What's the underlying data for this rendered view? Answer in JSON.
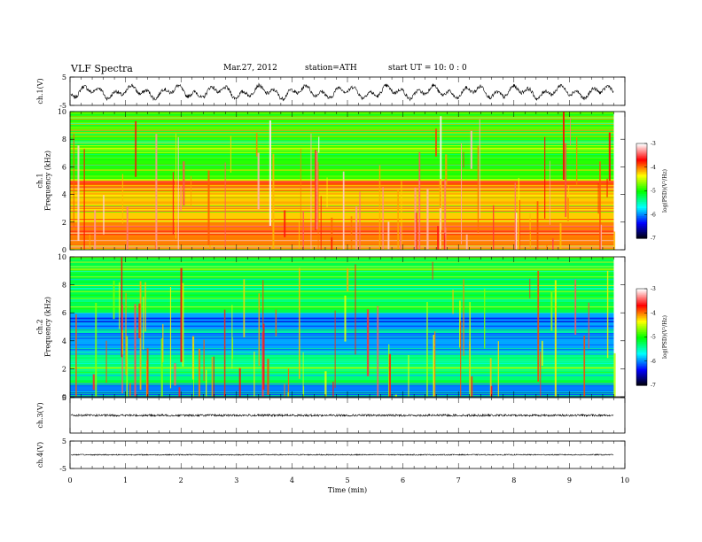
{
  "header": {
    "title": "VLF  Spectra",
    "date": "Mar.27, 2012",
    "station": "station=ATH",
    "start": "start  UT  =    10: 0  : 0"
  },
  "chart_data": [
    {
      "type": "line",
      "name": "ch1-waveform",
      "ylabel": "ch.1(V)",
      "ylim": [
        -5,
        5
      ],
      "yticks": [
        "5",
        "-5"
      ],
      "amplitude_range": [
        -2.2,
        1.6
      ]
    },
    {
      "type": "heatmap",
      "name": "ch1-spectrogram",
      "ylabel": "ch.1\nFrequency  (kHz)",
      "ylabel_parts": [
        "ch.1",
        "Frequency  (kHz)"
      ],
      "ylim": [
        0,
        10
      ],
      "yticks": [
        "10",
        "8",
        "6",
        "4",
        "2",
        "0"
      ],
      "colorbar": {
        "label": "log(PSD)(V²/Hz)",
        "ticks": [
          "-3",
          "-4",
          "-5",
          "-6",
          "-7"
        ],
        "range": [
          -7,
          -3
        ]
      },
      "typical_log_psd": {
        "0-2kHz": -4.0,
        "2-4.5kHz": -4.2,
        "4.5-5kHz": -3.9,
        "5-10kHz": -4.9
      }
    },
    {
      "type": "heatmap",
      "name": "ch2-spectrogram",
      "ylabel": "ch.2\nFrequency  (kHz)",
      "ylabel_parts": [
        "ch.2",
        "Frequency  (kHz)"
      ],
      "ylim": [
        0,
        10
      ],
      "yticks": [
        "10",
        "8",
        "6",
        "4",
        "2",
        "0"
      ],
      "colorbar": {
        "label": "log(PSD)(V²/Hz)",
        "ticks": [
          "-3",
          "-4",
          "-5",
          "-6",
          "-7"
        ],
        "range": [
          -7,
          -3
        ]
      },
      "typical_log_psd": {
        "0-1kHz": -6.0,
        "1-3kHz": -5.3,
        "3-6kHz": -5.9,
        "6-10kHz": -5.2
      }
    },
    {
      "type": "line",
      "name": "ch3-waveform",
      "ylabel": "ch.3(V)",
      "ylim": [
        -5,
        5
      ],
      "yticks": [
        "5"
      ],
      "amplitude_range": [
        -0.3,
        0.3
      ]
    },
    {
      "type": "line",
      "name": "ch4-waveform",
      "ylabel": "ch.4(V)",
      "ylim": [
        -5,
        5
      ],
      "yticks": [
        "5",
        "-5"
      ],
      "amplitude_range": [
        -0.2,
        0.2
      ]
    }
  ],
  "x_axis": {
    "label": "Time  (min)",
    "range": [
      0,
      10
    ],
    "data_end": 9.8,
    "ticks": [
      "0",
      "1",
      "2",
      "3",
      "4",
      "5",
      "6",
      "7",
      "8",
      "9",
      "10"
    ]
  },
  "colors": {
    "colormap": [
      "#000000",
      "#0000ff",
      "#00ffff",
      "#00ff00",
      "#ffff00",
      "#ff0000",
      "#ffffff"
    ]
  }
}
